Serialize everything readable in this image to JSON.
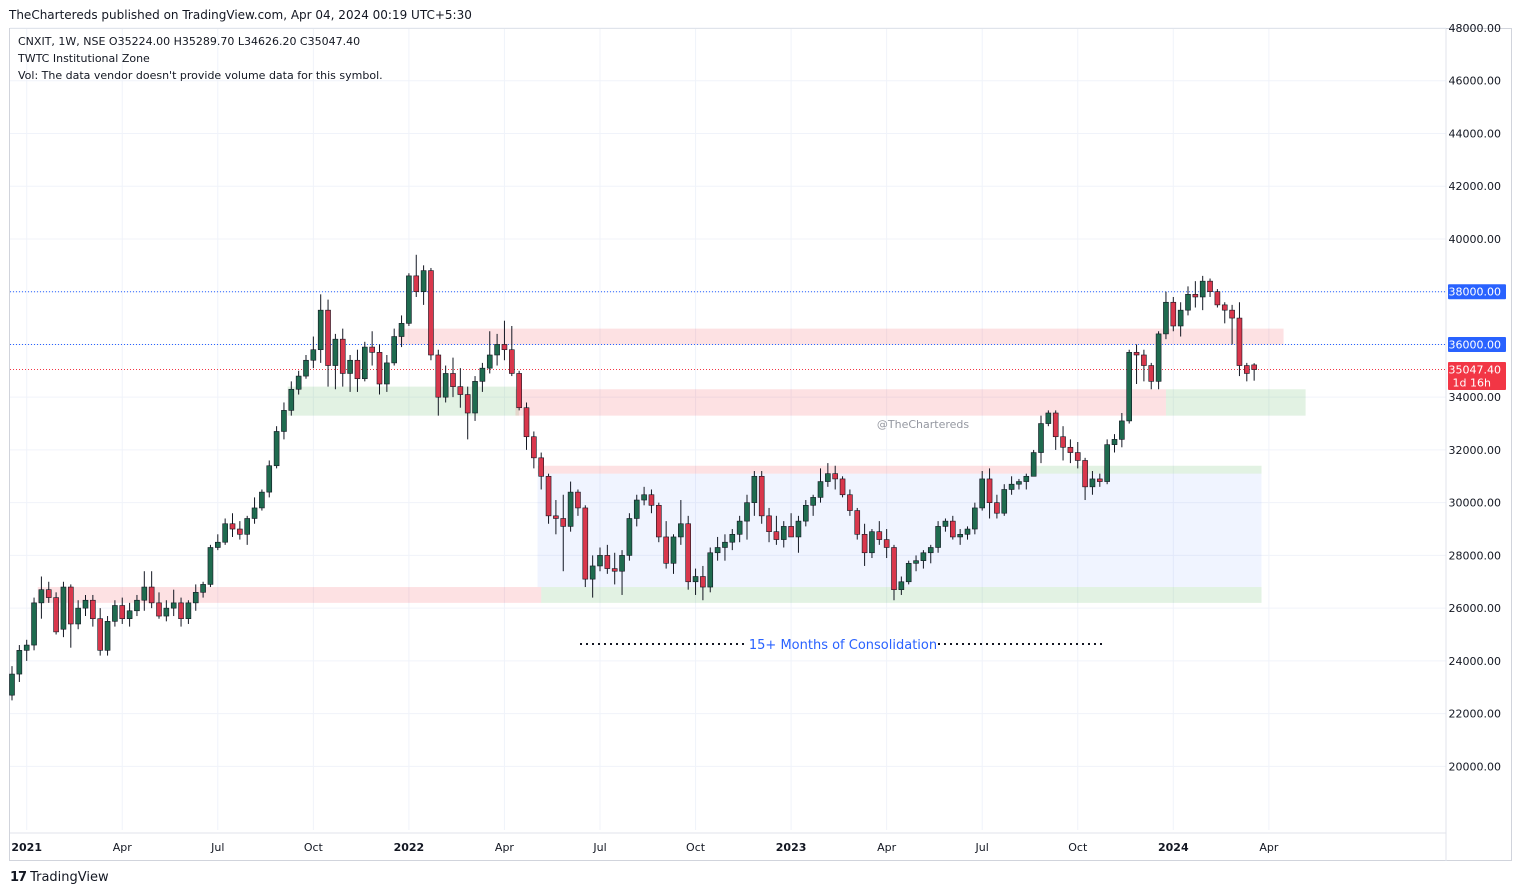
{
  "header": {
    "published": "TheChartereds published on TradingView.com, Apr 04, 2024 00:19 UTC+5:30"
  },
  "legend": {
    "ohlc": "CNXIT, 1W, NSE  O35224.00  H35289.70  L34626.20  C35047.40",
    "indicator": "TWTC Institutional Zone",
    "volume": "Vol: The data vendor doesn't provide volume data for this symbol."
  },
  "footer": {
    "logo": "17",
    "brand": "TradingView"
  },
  "watermark": "@TheChartereds",
  "annotation": "15+ Months of Consolidation",
  "colors": {
    "up": "#1f6b4f",
    "down": "#d9374c",
    "wick": "#131722",
    "grid": "#f0f3fa",
    "blue_line": "#2962ff",
    "red_line": "#f23645"
  },
  "chart_data": {
    "type": "candlestick",
    "symbol": "CNXIT",
    "timeframe": "1W",
    "exchange": "NSE",
    "ylim": [
      18600,
      49000
    ],
    "y_ticks": [
      "48000.00",
      "46000.00",
      "44000.00",
      "42000.00",
      "40000.00",
      "38000.00",
      "36000.00",
      "34000.00",
      "32000.00",
      "30000.00",
      "28000.00",
      "26000.00",
      "24000.00",
      "22000.00",
      "20000.00"
    ],
    "x_ticks": [
      {
        "label": "2021",
        "week": 2,
        "bold": true
      },
      {
        "label": "Apr",
        "week": 15,
        "bold": false
      },
      {
        "label": "Jul",
        "week": 28,
        "bold": false
      },
      {
        "label": "Oct",
        "week": 41,
        "bold": false
      },
      {
        "label": "2022",
        "week": 54,
        "bold": true
      },
      {
        "label": "Apr",
        "week": 67,
        "bold": false
      },
      {
        "label": "Jul",
        "week": 80,
        "bold": false
      },
      {
        "label": "Oct",
        "week": 93,
        "bold": false
      },
      {
        "label": "2023",
        "week": 106,
        "bold": true
      },
      {
        "label": "Apr",
        "week": 119,
        "bold": false
      },
      {
        "label": "Jul",
        "week": 132,
        "bold": false
      },
      {
        "label": "Oct",
        "week": 145,
        "bold": false
      },
      {
        "label": "2024",
        "week": 158,
        "bold": true
      },
      {
        "label": "Apr",
        "week": 171,
        "bold": false
      }
    ],
    "horizontal_lines": [
      {
        "price": 38000,
        "label": "38000.00",
        "color": "#2962ff"
      },
      {
        "price": 36000,
        "label": "36000.00",
        "color": "#2962ff"
      },
      {
        "price": 35047.4,
        "label": "35047.40",
        "sublabel": "1d 16h",
        "color": "#f23645"
      }
    ],
    "zones": [
      {
        "type": "supply",
        "w0": 3.5,
        "w1": 72,
        "top": 26800,
        "bottom": 26200
      },
      {
        "type": "demand",
        "w0": 37.5,
        "w1": 69,
        "top": 34400,
        "bottom": 33300
      },
      {
        "type": "supply",
        "w0": 52.5,
        "w1": 173,
        "top": 36600,
        "bottom": 36000
      },
      {
        "type": "supply",
        "w0": 68.5,
        "w1": 157,
        "top": 34300,
        "bottom": 33300
      },
      {
        "type": "demand",
        "w0": 157,
        "w1": 176,
        "top": 34300,
        "bottom": 33300
      },
      {
        "type": "supply",
        "w0": 71.5,
        "w1": 139,
        "top": 31400,
        "bottom": 31100
      },
      {
        "type": "demand",
        "w0": 139,
        "w1": 170,
        "top": 31400,
        "bottom": 31100
      },
      {
        "type": "demand",
        "w0": 72,
        "w1": 170,
        "top": 26800,
        "bottom": 26200
      },
      {
        "type": "range",
        "w0": 71.5,
        "w1": 170,
        "top": 31100,
        "bottom": 26800
      }
    ],
    "candles": [
      [
        22700,
        23800,
        22500,
        23500
      ],
      [
        23500,
        24600,
        23200,
        24400
      ],
      [
        24400,
        24800,
        24000,
        24600
      ],
      [
        24600,
        26400,
        24400,
        26200
      ],
      [
        26200,
        27200,
        25600,
        26700
      ],
      [
        26700,
        27000,
        26200,
        26400
      ],
      [
        26400,
        26600,
        25000,
        25100
      ],
      [
        25200,
        27000,
        24900,
        26800
      ],
      [
        26800,
        26900,
        24500,
        25400
      ],
      [
        25400,
        26300,
        25200,
        26000
      ],
      [
        26000,
        26500,
        25700,
        26300
      ],
      [
        26300,
        26500,
        25300,
        25600
      ],
      [
        25600,
        26000,
        24200,
        24400
      ],
      [
        24400,
        25700,
        24200,
        25500
      ],
      [
        25500,
        26300,
        25300,
        26100
      ],
      [
        26100,
        26400,
        25400,
        25600
      ],
      [
        25600,
        26200,
        25300,
        25900
      ],
      [
        25900,
        26500,
        25700,
        26300
      ],
      [
        26300,
        27400,
        25900,
        26800
      ],
      [
        26800,
        27400,
        26000,
        26200
      ],
      [
        26200,
        26600,
        25600,
        25700
      ],
      [
        25700,
        26300,
        25500,
        26000
      ],
      [
        26000,
        26700,
        25700,
        26200
      ],
      [
        26200,
        26400,
        25300,
        25600
      ],
      [
        25600,
        26300,
        25400,
        26200
      ],
      [
        26200,
        26900,
        25900,
        26600
      ],
      [
        26600,
        27000,
        26400,
        26900
      ],
      [
        26900,
        28400,
        26800,
        28300
      ],
      [
        28300,
        28800,
        28200,
        28500
      ],
      [
        28500,
        29400,
        28400,
        29200
      ],
      [
        29200,
        29600,
        28700,
        29000
      ],
      [
        29000,
        29300,
        28600,
        28800
      ],
      [
        28800,
        29500,
        28400,
        29400
      ],
      [
        29400,
        30200,
        29200,
        29800
      ],
      [
        29800,
        30500,
        29700,
        30400
      ],
      [
        30400,
        31600,
        30200,
        31400
      ],
      [
        31400,
        32900,
        31300,
        32700
      ],
      [
        32700,
        33800,
        32400,
        33500
      ],
      [
        33500,
        34600,
        33300,
        34300
      ],
      [
        34300,
        35000,
        34100,
        34800
      ],
      [
        34800,
        35600,
        34700,
        35400
      ],
      [
        35400,
        36300,
        35100,
        35800
      ],
      [
        35800,
        37900,
        35300,
        37300
      ],
      [
        37300,
        37700,
        34400,
        35200
      ],
      [
        35200,
        36400,
        34300,
        36200
      ],
      [
        36200,
        36600,
        34400,
        34900
      ],
      [
        34900,
        35600,
        34200,
        35400
      ],
      [
        35400,
        35800,
        34200,
        34700
      ],
      [
        34700,
        36100,
        34600,
        35900
      ],
      [
        35900,
        36500,
        35200,
        35700
      ],
      [
        35700,
        36000,
        34100,
        34500
      ],
      [
        34500,
        35600,
        34200,
        35300
      ],
      [
        35300,
        36600,
        35200,
        36300
      ],
      [
        36300,
        37100,
        35900,
        36800
      ],
      [
        36800,
        38700,
        36700,
        38600
      ],
      [
        38600,
        39400,
        37800,
        38000
      ],
      [
        38000,
        39000,
        37500,
        38800
      ],
      [
        38800,
        38900,
        35400,
        35600
      ],
      [
        35600,
        35800,
        33300,
        34000
      ],
      [
        34000,
        35200,
        33800,
        34900
      ],
      [
        34900,
        35500,
        34000,
        34400
      ],
      [
        34400,
        35100,
        33600,
        34100
      ],
      [
        34100,
        34400,
        32400,
        33400
      ],
      [
        33400,
        34800,
        33100,
        34600
      ],
      [
        34600,
        35300,
        34200,
        35100
      ],
      [
        35100,
        36500,
        34900,
        35600
      ],
      [
        35600,
        36400,
        35200,
        36000
      ],
      [
        36000,
        36900,
        35400,
        35800
      ],
      [
        35800,
        36700,
        34800,
        34900
      ],
      [
        34900,
        35000,
        33500,
        33600
      ],
      [
        33600,
        33800,
        32000,
        32500
      ],
      [
        32500,
        32700,
        31300,
        31700
      ],
      [
        31700,
        31900,
        30500,
        31000
      ],
      [
        31000,
        31100,
        29200,
        29500
      ],
      [
        29500,
        30100,
        28800,
        29400
      ],
      [
        29400,
        30300,
        27400,
        29100
      ],
      [
        29100,
        30800,
        28900,
        30400
      ],
      [
        30400,
        30500,
        29500,
        29800
      ],
      [
        29800,
        29900,
        26800,
        27100
      ],
      [
        27100,
        28000,
        26400,
        27600
      ],
      [
        27600,
        28300,
        27400,
        28000
      ],
      [
        28000,
        28400,
        27300,
        27500
      ],
      [
        27500,
        28100,
        26900,
        27400
      ],
      [
        27400,
        28200,
        26500,
        28000
      ],
      [
        28000,
        29600,
        27800,
        29400
      ],
      [
        29400,
        30300,
        29100,
        30100
      ],
      [
        30100,
        30600,
        29900,
        30300
      ],
      [
        30300,
        30500,
        29600,
        29900
      ],
      [
        29900,
        30000,
        28500,
        28700
      ],
      [
        28700,
        29300,
        27500,
        27700
      ],
      [
        27700,
        28800,
        27300,
        28700
      ],
      [
        28700,
        30100,
        28400,
        29200
      ],
      [
        29200,
        29500,
        26700,
        27000
      ],
      [
        27000,
        27500,
        26500,
        27200
      ],
      [
        27200,
        27600,
        26300,
        26800
      ],
      [
        26800,
        28300,
        26600,
        28100
      ],
      [
        28100,
        28700,
        27800,
        28300
      ],
      [
        28300,
        28800,
        27800,
        28500
      ],
      [
        28500,
        29000,
        28200,
        28800
      ],
      [
        28800,
        29500,
        28500,
        29300
      ],
      [
        29300,
        30300,
        28600,
        30000
      ],
      [
        30000,
        31200,
        29500,
        31000
      ],
      [
        31000,
        31200,
        29200,
        29500
      ],
      [
        29500,
        29800,
        28500,
        28900
      ],
      [
        28900,
        29500,
        28400,
        28600
      ],
      [
        28600,
        29300,
        28300,
        29100
      ],
      [
        29100,
        29600,
        28800,
        28700
      ],
      [
        28700,
        29500,
        28100,
        29300
      ],
      [
        29300,
        30100,
        29100,
        29900
      ],
      [
        29900,
        30300,
        29500,
        30200
      ],
      [
        30200,
        31300,
        30000,
        30800
      ],
      [
        30800,
        31500,
        30600,
        31100
      ],
      [
        31100,
        31400,
        30500,
        30900
      ],
      [
        30900,
        31000,
        30200,
        30300
      ],
      [
        30300,
        30500,
        29500,
        29700
      ],
      [
        29700,
        29800,
        28600,
        28800
      ],
      [
        28800,
        29200,
        27600,
        28100
      ],
      [
        28100,
        29000,
        27900,
        28900
      ],
      [
        28900,
        29300,
        28400,
        28600
      ],
      [
        28600,
        29000,
        27900,
        28300
      ],
      [
        28300,
        28400,
        26300,
        26700
      ],
      [
        26700,
        27200,
        26500,
        27000
      ],
      [
        27000,
        27800,
        26900,
        27700
      ],
      [
        27700,
        28000,
        27400,
        27800
      ],
      [
        27800,
        28200,
        27500,
        28100
      ],
      [
        28100,
        28400,
        27700,
        28300
      ],
      [
        28300,
        29300,
        28100,
        29100
      ],
      [
        29100,
        29400,
        28900,
        29300
      ],
      [
        29300,
        29500,
        28600,
        28700
      ],
      [
        28700,
        29000,
        28400,
        28800
      ],
      [
        28800,
        29100,
        28600,
        29000
      ],
      [
        29000,
        30000,
        28800,
        29800
      ],
      [
        29800,
        31200,
        29700,
        30900
      ],
      [
        30900,
        31300,
        29400,
        30000
      ],
      [
        30000,
        30300,
        29400,
        29600
      ],
      [
        29600,
        30700,
        29500,
        30500
      ],
      [
        30500,
        31000,
        30300,
        30700
      ],
      [
        30700,
        30900,
        30500,
        30800
      ],
      [
        30800,
        31100,
        30500,
        31000
      ],
      [
        31000,
        32000,
        31000,
        31900
      ],
      [
        31900,
        33300,
        31500,
        33000
      ],
      [
        33000,
        33500,
        32900,
        33400
      ],
      [
        33400,
        33500,
        32000,
        32500
      ],
      [
        32500,
        32900,
        31600,
        32100
      ],
      [
        32100,
        32400,
        31500,
        31900
      ],
      [
        31900,
        32300,
        31300,
        31600
      ],
      [
        31600,
        31700,
        30100,
        30600
      ],
      [
        30600,
        31200,
        30300,
        30900
      ],
      [
        30900,
        31100,
        30600,
        30800
      ],
      [
        30800,
        32400,
        30700,
        32200
      ],
      [
        32200,
        32600,
        31900,
        32400
      ],
      [
        32400,
        33400,
        32100,
        33100
      ],
      [
        33100,
        35800,
        33000,
        35700
      ],
      [
        35700,
        36000,
        34500,
        35600
      ],
      [
        35600,
        35800,
        34600,
        35200
      ],
      [
        35200,
        35300,
        34300,
        34600
      ],
      [
        34600,
        36500,
        34300,
        36400
      ],
      [
        36400,
        38000,
        36200,
        37600
      ],
      [
        37600,
        37800,
        36500,
        36700
      ],
      [
        36700,
        37600,
        36300,
        37300
      ],
      [
        37300,
        38200,
        37100,
        37900
      ],
      [
        37900,
        38400,
        37400,
        37800
      ],
      [
        37800,
        38600,
        37300,
        38400
      ],
      [
        38400,
        38500,
        37800,
        38000
      ],
      [
        38000,
        38100,
        37400,
        37500
      ],
      [
        37500,
        37600,
        36800,
        37300
      ],
      [
        37300,
        37500,
        36000,
        37000
      ],
      [
        37000,
        37600,
        34800,
        35200
      ],
      [
        35200,
        35300,
        34600,
        34900
      ],
      [
        35224,
        35290,
        34626,
        35047
      ]
    ]
  }
}
